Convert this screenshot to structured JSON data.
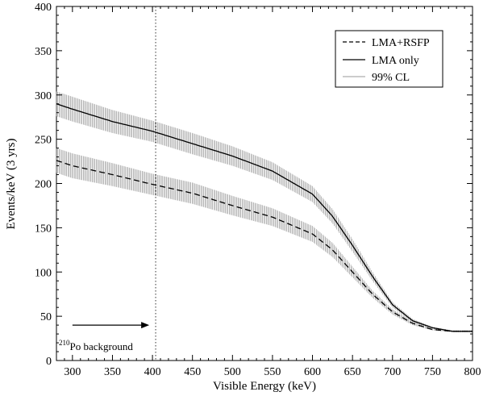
{
  "chart_data": {
    "type": "line",
    "xlabel": "Visible Energy (keV)",
    "ylabel": "Events/keV (3 yrs)",
    "xlim": [
      280,
      800
    ],
    "ylim": [
      0,
      400
    ],
    "x_ticks": [
      300,
      350,
      400,
      450,
      500,
      550,
      600,
      650,
      700,
      750,
      800
    ],
    "y_ticks": [
      0,
      50,
      100,
      150,
      200,
      250,
      300,
      350,
      400
    ],
    "grid": false,
    "legend_position": "top-right",
    "series": [
      {
        "name": "LMA+RSFP",
        "style": "dashed",
        "x": [
          280,
          300,
          350,
          400,
          450,
          500,
          550,
          600,
          625,
          650,
          675,
          700,
          725,
          750,
          775,
          800
        ],
        "y": [
          226,
          220,
          210,
          199,
          189,
          175,
          162,
          143,
          125,
          100,
          75,
          55,
          42,
          35,
          33,
          33
        ],
        "band_halfwidth": [
          14,
          14,
          13,
          12,
          12,
          11,
          10,
          9,
          8,
          6,
          4,
          3,
          2,
          1,
          1,
          1
        ]
      },
      {
        "name": "LMA only",
        "style": "solid",
        "x": [
          280,
          300,
          350,
          400,
          450,
          500,
          550,
          600,
          625,
          650,
          675,
          700,
          725,
          750,
          775,
          800
        ],
        "y": [
          290,
          284,
          270,
          259,
          245,
          231,
          214,
          188,
          163,
          130,
          95,
          63,
          45,
          37,
          33,
          33
        ],
        "band_halfwidth": [
          14,
          14,
          13,
          12,
          12,
          11,
          10,
          9,
          8,
          7,
          5,
          3,
          2,
          1,
          1,
          1
        ]
      }
    ],
    "band_legend_label": "99% CL",
    "annotations": [
      {
        "kind": "vline",
        "x": 404
      },
      {
        "kind": "arrow-label",
        "sup": "210",
        "text": "Po background",
        "arrow_from": [
          300,
          40
        ],
        "arrow_to": [
          396,
          40
        ],
        "label_at": [
          283,
          12
        ]
      }
    ]
  }
}
